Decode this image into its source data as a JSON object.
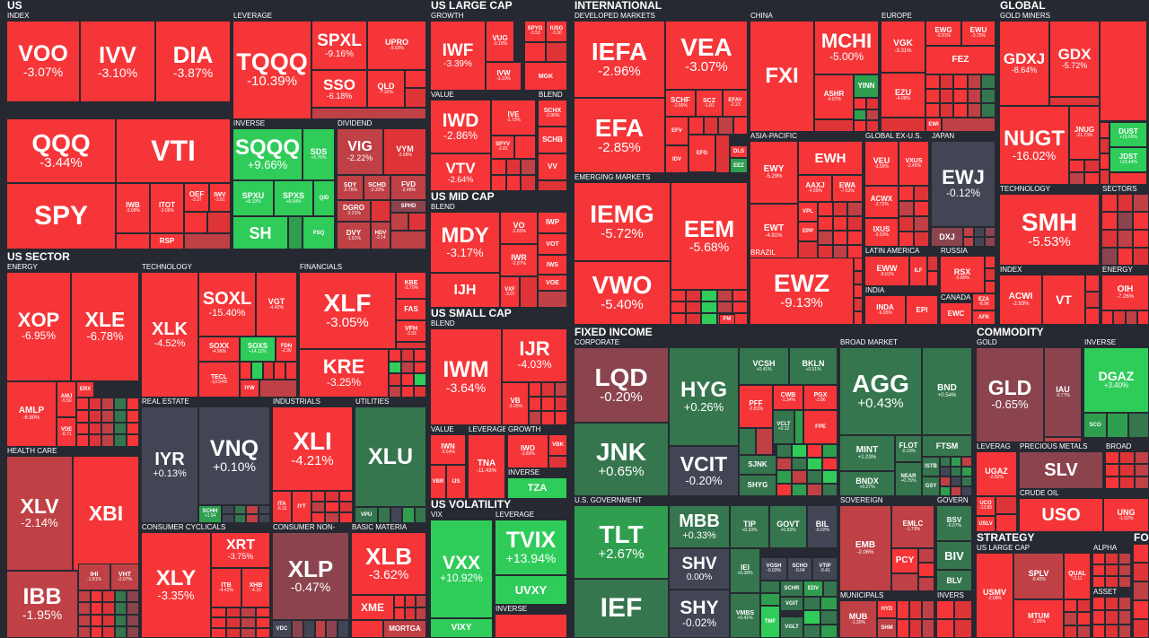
{
  "sections": {
    "us": "US",
    "us_sector": "US SECTOR",
    "us_large_cap": "US LARGE CAP",
    "us_mid_cap": "US MID CAP",
    "us_small_cap": "US SMALL CAP",
    "us_volatility": "US VOLATILITY",
    "international": "INTERNATIONAL",
    "fixed_income": "FIXED INCOME",
    "global": "GLOBAL",
    "commodity": "COMMODITY",
    "strategy": "STRATEGY",
    "fo": "FO"
  },
  "industries": {
    "index": "INDEX",
    "leverage": "LEVERAGE",
    "inverse": "INVERSE",
    "dividend": "DIVIDEND",
    "energy": "ENERGY",
    "technology": "TECHNOLOGY",
    "financials": "FINANCIALS",
    "health_care": "HEALTH CARE",
    "real_estate": "REAL ESTATE",
    "industrials": "INDUSTRIALS",
    "utilities": "UTILITIES",
    "consumer_cyclicals": "CONSUMER CYCLICALS",
    "consumer_non": "CONSUMER NON-",
    "basic_materia": "BASIC MATERIA",
    "growth": "GROWTH",
    "value": "VALUE",
    "blend": "BLEND",
    "vix": "VIX",
    "developed_markets": "DEVELOPED MARKETS",
    "emerging_markets": "EMERGING MARKETS",
    "china": "CHINA",
    "europe": "EUROPE",
    "asia_pacific": "ASIA-PACIFIC",
    "global_ex_us": "GLOBAL EX-U.S.",
    "japan": "JAPAN",
    "brazil": "BRAZIL",
    "latin_america": "LATIN AMERICA",
    "india": "INDIA",
    "russia": "RUSSIA",
    "canada": "CANADA",
    "gold_miners": "GOLD MINERS",
    "sectors": "SECTORS",
    "corporate": "CORPORATE",
    "broad_market": "BROAD MARKET",
    "us_government": "U.S. GOVERNMENT",
    "sovereign": "SOVEREIGN",
    "govern": "GOVERN",
    "municipals": "MUNICIPALS",
    "invers": "INVERS",
    "gold": "GOLD",
    "precious_metals": "PRECIOUS METALS",
    "broad": "BROAD",
    "crude_oil": "CRUDE OIL",
    "leverag": "LEVERAG",
    "us_large_cap": "US LARGE CAP",
    "alpha": "ALPHA",
    "asset": "ASSET"
  },
  "tiles": [
    {
      "t": "VOO",
      "p": "-3.07%"
    },
    {
      "t": "IVV",
      "p": "-3.10%"
    },
    {
      "t": "DIA",
      "p": "-3.87%"
    },
    {
      "t": "QQQ",
      "p": "-3.44%"
    },
    {
      "t": "VTI",
      "p": ""
    },
    {
      "t": "SPY",
      "p": ""
    },
    {
      "t": "IWB",
      "p": "-3.08%"
    },
    {
      "t": "ITOT",
      "p": "-3.06%"
    },
    {
      "t": "OEF",
      "p": "-3.37"
    },
    {
      "t": "IWV",
      "p": "-2.81"
    },
    {
      "t": "RSP",
      "p": ""
    },
    {
      "t": "TQQQ",
      "p": "-10.39%"
    },
    {
      "t": "SPXL",
      "p": "-9.16%"
    },
    {
      "t": "UPRO",
      "p": "-9.03%"
    },
    {
      "t": "SSO",
      "p": "-6.18%"
    },
    {
      "t": "QLD",
      "p": "-7.32%"
    },
    {
      "t": "SQQQ",
      "p": "+9.66%"
    },
    {
      "t": "SDS",
      "p": "+5.76%"
    },
    {
      "t": "SPXU",
      "p": "+8.19%"
    },
    {
      "t": "SPXS",
      "p": "+8.54%"
    },
    {
      "t": "QID",
      "p": ""
    },
    {
      "t": "SH",
      "p": ""
    },
    {
      "t": "PSQ",
      "p": ""
    },
    {
      "t": "VIG",
      "p": "-2.22%"
    },
    {
      "t": "VYM",
      "p": "-2.68%"
    },
    {
      "t": "SDY",
      "p": "-2.76%"
    },
    {
      "t": "SCHD",
      "p": "-2.32%"
    },
    {
      "t": "FVD",
      "p": "-2.48%"
    },
    {
      "t": "DGRO",
      "p": "-2.21%"
    },
    {
      "t": "SPHD",
      "p": ""
    },
    {
      "t": "DVY",
      "p": "-1.91%"
    },
    {
      "t": "HDV",
      "p": "-3.14"
    },
    {
      "t": "XOP",
      "p": "-6.95%"
    },
    {
      "t": "XLE",
      "p": "-6.78%"
    },
    {
      "t": "AMLP",
      "p": "-6.90%"
    },
    {
      "t": "AMJ",
      "p": "-5.50"
    },
    {
      "t": "ERX",
      "p": ""
    },
    {
      "t": "VDE",
      "p": "-6.71"
    },
    {
      "t": "XLK",
      "p": "-4.52%"
    },
    {
      "t": "SOXL",
      "p": "-15.40%"
    },
    {
      "t": "VGT",
      "p": "-4.42%"
    },
    {
      "t": "SOXX",
      "p": "-4.96%"
    },
    {
      "t": "SOXS",
      "p": "+14.11%"
    },
    {
      "t": "FDN",
      "p": "-2.99"
    },
    {
      "t": "TECL",
      "p": "-13.04%"
    },
    {
      "t": "IYW",
      "p": ""
    },
    {
      "t": "XLF",
      "p": "-3.05%"
    },
    {
      "t": "KBE",
      "p": "-3.70%"
    },
    {
      "t": "FAS",
      "p": ""
    },
    {
      "t": "VFH",
      "p": "-3.33"
    },
    {
      "t": "KRE",
      "p": "-3.25%"
    },
    {
      "t": "XLV",
      "p": "-2.14%"
    },
    {
      "t": "XBI",
      "p": ""
    },
    {
      "t": "IBB",
      "p": "-1.95%"
    },
    {
      "t": "IHI",
      "p": "-1.81%"
    },
    {
      "t": "VHT",
      "p": "-2.07%"
    },
    {
      "t": "IYR",
      "p": "+0.13%"
    },
    {
      "t": "VNQ",
      "p": "+0.10%"
    },
    {
      "t": "SCHH",
      "p": "+1.54"
    },
    {
      "t": "XLI",
      "p": "-4.21%"
    },
    {
      "t": "ITA",
      "p": "-6.31"
    },
    {
      "t": "IYT",
      "p": ""
    },
    {
      "t": "XLU",
      "p": ""
    },
    {
      "t": "VPU",
      "p": ""
    },
    {
      "t": "XLY",
      "p": "-3.35%"
    },
    {
      "t": "XRT",
      "p": "-3.75%"
    },
    {
      "t": "ITB",
      "p": "-4.42%"
    },
    {
      "t": "XHB",
      "p": "-4.10"
    },
    {
      "t": "XLP",
      "p": "-0.47%"
    },
    {
      "t": "VDC",
      "p": ""
    },
    {
      "t": "XLB",
      "p": "-3.62%"
    },
    {
      "t": "XME",
      "p": ""
    },
    {
      "t": "MORTGA",
      "p": ""
    },
    {
      "t": "IWF",
      "p": "-3.39%"
    },
    {
      "t": "VUG",
      "p": "-3.19%"
    },
    {
      "t": "SPYG",
      "p": "-3.53"
    },
    {
      "t": "IUSG",
      "p": "-3.30"
    },
    {
      "t": "IVW",
      "p": "-3.10%"
    },
    {
      "t": "MGK",
      "p": ""
    },
    {
      "t": "IWD",
      "p": "-2.86%"
    },
    {
      "t": "IVE",
      "p": "-2.73%"
    },
    {
      "t": "SPYV",
      "p": "-2.81"
    },
    {
      "t": "VTV",
      "p": "-2.64%"
    },
    {
      "t": "SCHX",
      "p": "-2.96%"
    },
    {
      "t": "SCHB",
      "p": ""
    },
    {
      "t": "VV",
      "p": ""
    },
    {
      "t": "MDY",
      "p": "-3.17%"
    },
    {
      "t": "VO",
      "p": "-2.85%"
    },
    {
      "t": "IWP",
      "p": ""
    },
    {
      "t": "IWR",
      "p": "-2.87%"
    },
    {
      "t": "VOT",
      "p": ""
    },
    {
      "t": "IJH",
      "p": ""
    },
    {
      "t": "VXF",
      "p": "-3.07"
    },
    {
      "t": "IWS",
      "p": ""
    },
    {
      "t": "VOE",
      "p": ""
    },
    {
      "t": "IWM",
      "p": "-3.64%"
    },
    {
      "t": "IJR",
      "p": "-4.03%"
    },
    {
      "t": "VB",
      "p": "-3.05%"
    },
    {
      "t": "IWN",
      "p": "-3.54%"
    },
    {
      "t": "TNA",
      "p": "-11.43%"
    },
    {
      "t": "IWO",
      "p": "-3.80%"
    },
    {
      "t": "VBK",
      "p": ""
    },
    {
      "t": "VBR",
      "p": ""
    },
    {
      "t": "IJS",
      "p": ""
    },
    {
      "t": "TZA",
      "p": ""
    },
    {
      "t": "VXX",
      "p": "+10.92%"
    },
    {
      "t": "TVIX",
      "p": "+13.94%"
    },
    {
      "t": "UVXY",
      "p": ""
    },
    {
      "t": "VIXY",
      "p": ""
    },
    {
      "t": "IEFA",
      "p": "-2.96%"
    },
    {
      "t": "VEA",
      "p": "-3.07%"
    },
    {
      "t": "EFA",
      "p": "-2.85%"
    },
    {
      "t": "SCHF",
      "p": "-2.90%"
    },
    {
      "t": "SCZ",
      "p": "-1.81"
    },
    {
      "t": "EFAV",
      "p": "-2.23"
    },
    {
      "t": "EFV",
      "p": ""
    },
    {
      "t": "IDV",
      "p": ""
    },
    {
      "t": "EFG",
      "p": ""
    },
    {
      "t": "DLS",
      "p": ""
    },
    {
      "t": "EEZ",
      "p": ""
    },
    {
      "t": "IEMG",
      "p": "-5.72%"
    },
    {
      "t": "EEM",
      "p": "-5.68%"
    },
    {
      "t": "VWO",
      "p": "-5.40%"
    },
    {
      "t": "FXI",
      "p": ""
    },
    {
      "t": "MCHI",
      "p": "-5.00%"
    },
    {
      "t": "YINN",
      "p": ""
    },
    {
      "t": "ASHR",
      "p": "-4.07%"
    },
    {
      "t": "VGK",
      "p": "-3.31%"
    },
    {
      "t": "EWG",
      "p": "-3.91%"
    },
    {
      "t": "EWU",
      "p": "-3.75%"
    },
    {
      "t": "FEZ",
      "p": ""
    },
    {
      "t": "EZU",
      "p": "-4.08%"
    },
    {
      "t": "EWI",
      "p": ""
    },
    {
      "t": "EWY",
      "p": "-5.29%"
    },
    {
      "t": "EWH",
      "p": ""
    },
    {
      "t": "AAXJ",
      "p": "-4.99%"
    },
    {
      "t": "EWA",
      "p": "-7.53%"
    },
    {
      "t": "EWT",
      "p": "-4.81%"
    },
    {
      "t": "VPL",
      "p": ""
    },
    {
      "t": "EPP",
      "p": ""
    },
    {
      "t": "VEU",
      "p": "-3.59%"
    },
    {
      "t": "VXUS",
      "p": "-3.45%"
    },
    {
      "t": "ACWX",
      "p": "-3.72%"
    },
    {
      "t": "IXUS",
      "p": "-3.50%"
    },
    {
      "t": "EWJ",
      "p": "-0.12%"
    },
    {
      "t": "DXJ",
      "p": ""
    },
    {
      "t": "EWZ",
      "p": "-9.13%"
    },
    {
      "t": "FM",
      "p": ""
    },
    {
      "t": "EWW",
      "p": "-8.01%"
    },
    {
      "t": "ILF",
      "p": ""
    },
    {
      "t": "INDA",
      "p": "-6.05%"
    },
    {
      "t": "EPI",
      "p": ""
    },
    {
      "t": "RSX",
      "p": "-5.80%"
    },
    {
      "t": "EWC",
      "p": ""
    },
    {
      "t": "EZA",
      "p": "-8.96"
    },
    {
      "t": "AFK",
      "p": ""
    },
    {
      "t": "GDXJ",
      "p": "-8.64%"
    },
    {
      "t": "GDX",
      "p": "-5.72%"
    },
    {
      "t": "NUGT",
      "p": "-16.02%"
    },
    {
      "t": "JNUG",
      "p": "-21.73%"
    },
    {
      "t": "DUST",
      "p": "+19.65%"
    },
    {
      "t": "JDST",
      "p": "+23.44%"
    },
    {
      "t": "SMH",
      "p": "-5.53%"
    },
    {
      "t": "ACWI",
      "p": "-2.93%"
    },
    {
      "t": "VT",
      "p": ""
    },
    {
      "t": "OIH",
      "p": "-7.26%"
    },
    {
      "t": "LQD",
      "p": "-0.20%"
    },
    {
      "t": "HYG",
      "p": "+0.26%"
    },
    {
      "t": "VCSH",
      "p": "+0.41%"
    },
    {
      "t": "BKLN",
      "p": "+0.51%"
    },
    {
      "t": "JNK",
      "p": "+0.65%"
    },
    {
      "t": "PFF",
      "p": "-2.81%"
    },
    {
      "t": "CWB",
      "p": "-1.34%"
    },
    {
      "t": "PGX",
      "p": "-2.86"
    },
    {
      "t": "VCLT",
      "p": "+0.12"
    },
    {
      "t": "FPE",
      "p": ""
    },
    {
      "t": "VCIT",
      "p": "-0.20%"
    },
    {
      "t": "SJNK",
      "p": ""
    },
    {
      "t": "SHYG",
      "p": ""
    },
    {
      "t": "AGG",
      "p": "+0.43%"
    },
    {
      "t": "BND",
      "p": "+0.54%"
    },
    {
      "t": "MINT",
      "p": "+1.03%"
    },
    {
      "t": "FLOT",
      "p": "-0.10%"
    },
    {
      "t": "FTSM",
      "p": ""
    },
    {
      "t": "BNDX",
      "p": "+0.27%"
    },
    {
      "t": "NEAR",
      "p": "+0.75%"
    },
    {
      "t": "ISTB",
      "p": ""
    },
    {
      "t": "GSY",
      "p": ""
    },
    {
      "t": "TLT",
      "p": "+2.67%"
    },
    {
      "t": "MBB",
      "p": "+0.33%"
    },
    {
      "t": "TIP",
      "p": "+0.33%"
    },
    {
      "t": "GOVT",
      "p": "+0.93%"
    },
    {
      "t": "BIL",
      "p": "-0.02%"
    },
    {
      "t": "SHV",
      "p": "0.00%"
    },
    {
      "t": "IEI",
      "p": "+0.38%"
    },
    {
      "t": "VGSH",
      "p": "-0.03%"
    },
    {
      "t": "SCHO",
      "p": "-0.04"
    },
    {
      "t": "VTIP",
      "p": "-0.41"
    },
    {
      "t": "IEF",
      "p": ""
    },
    {
      "t": "SHY",
      "p": "-0.02%"
    },
    {
      "t": "SCHR",
      "p": ""
    },
    {
      "t": "EDV",
      "p": ""
    },
    {
      "t": "VMBS",
      "p": "+0.41%"
    },
    {
      "t": "TMF",
      "p": ""
    },
    {
      "t": "VGIT",
      "p": ""
    },
    {
      "t": "VGLT",
      "p": ""
    },
    {
      "t": "EMB",
      "p": "-2.06%"
    },
    {
      "t": "EMLC",
      "p": "-1.73%"
    },
    {
      "t": "PCY",
      "p": ""
    },
    {
      "t": "BSV",
      "p": "-0.07%"
    },
    {
      "t": "BIV",
      "p": ""
    },
    {
      "t": "BLV",
      "p": ""
    },
    {
      "t": "MUB",
      "p": "-1.30%"
    },
    {
      "t": "HYD",
      "p": ""
    },
    {
      "t": "SHM",
      "p": ""
    },
    {
      "t": "GLD",
      "p": "-0.65%"
    },
    {
      "t": "IAU",
      "p": "-0.77%"
    },
    {
      "t": "DGAZ",
      "p": "+3.40%"
    },
    {
      "t": "SCO",
      "p": ""
    },
    {
      "t": "UGAZ",
      "p": "-2.82%"
    },
    {
      "t": "SLV",
      "p": ""
    },
    {
      "t": "UCO",
      "p": "-13.88"
    },
    {
      "t": "USLV",
      "p": ""
    },
    {
      "t": "USO",
      "p": ""
    },
    {
      "t": "UNG",
      "p": "-1.02%"
    },
    {
      "t": "USMV",
      "p": "-2.08%"
    },
    {
      "t": "SPLV",
      "p": "-0.40%"
    },
    {
      "t": "QUAL",
      "p": "-3.11"
    },
    {
      "t": "MTUM",
      "p": "-1.95%"
    }
  ]
}
